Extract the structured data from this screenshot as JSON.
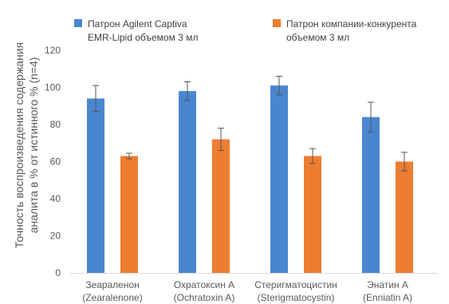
{
  "chart_data": {
    "type": "bar",
    "categories": [
      [
        "Зеараленон",
        "(Zearalenone)"
      ],
      [
        "Охратоксин А",
        "(Ochratoxin A)"
      ],
      [
        "Стеригматоцистин",
        "(Sterigmatocystin)"
      ],
      [
        "Энатин А",
        "(Enniatin A)"
      ]
    ],
    "series": [
      {
        "name": [
          "Патрон Agilent Captiva",
          "EMR-Lipid объемом 3 мл"
        ],
        "color": "#4a86d0",
        "values": [
          94,
          98,
          101,
          84
        ],
        "errors": [
          7,
          5,
          5,
          8
        ]
      },
      {
        "name": [
          "Патрон компании-конкурента",
          "объемом 3 мл"
        ],
        "color": "#ed7d31",
        "values": [
          63,
          72,
          63,
          60
        ],
        "errors": [
          1.5,
          6,
          4,
          5
        ]
      }
    ],
    "ylabel": [
      "Точность воспроизведения содержания",
      "аналита в % от истинного % (n=4)"
    ],
    "ylim": [
      0,
      120
    ],
    "yticks": [
      0,
      20,
      40,
      60,
      80,
      100,
      120
    ],
    "grid": false,
    "legend": "top"
  }
}
